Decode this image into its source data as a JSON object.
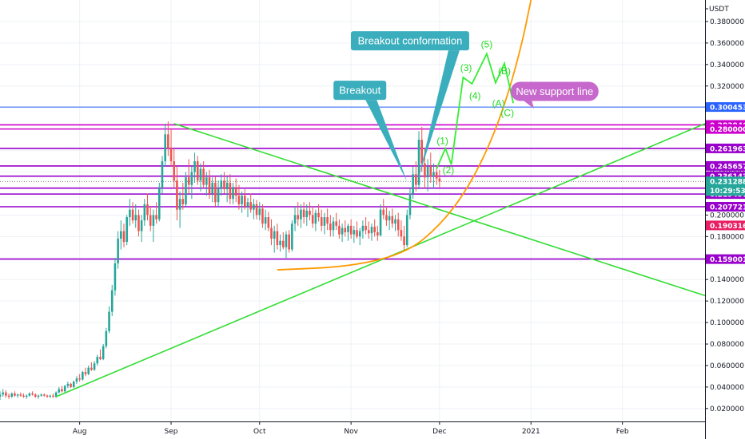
{
  "chart_data": {
    "type": "candlestick",
    "currency_label": "USDT",
    "y_range": [
      0.008,
      0.4
    ],
    "x_range": [
      "Jul 5",
      "Mar 1"
    ],
    "y_ticks": [
      "0.380000",
      "0.360000",
      "0.340000",
      "0.320000",
      "0.300000",
      "0.280000",
      "0.260000",
      "0.240000",
      "0.220000",
      "0.200000",
      "0.180000",
      "0.160000",
      "0.140000",
      "0.120000",
      "0.100000",
      "0.080000",
      "0.060000",
      "0.040000",
      "0.020000"
    ],
    "x_ticks": [
      {
        "label": "Aug",
        "date": "Aug 1"
      },
      {
        "label": "Sep",
        "date": "Sep 1"
      },
      {
        "label": "Oct",
        "date": "Oct 1"
      },
      {
        "label": "Nov",
        "date": "Nov 1"
      },
      {
        "label": "Dec",
        "date": "Dec 1"
      },
      {
        "label": "2021",
        "date": "Jan 1"
      },
      {
        "label": "Feb",
        "date": "Feb 1"
      }
    ],
    "grid": true,
    "horizontal_levels": [
      {
        "value": 0.283846,
        "label": "0.283846",
        "color": "#cc00cc"
      },
      {
        "value": 0.28,
        "label": "0.280000",
        "color": "#cc00cc"
      },
      {
        "value": 0.261963,
        "label": "0.261963",
        "color": "#9900cc"
      },
      {
        "value": 0.245657,
        "label": "0.245657",
        "color": "#9900cc"
      },
      {
        "value": 0.236143,
        "label": "0.236143",
        "color": "#9900cc"
      },
      {
        "value": 0.225,
        "label": "",
        "color": "#9900cc"
      },
      {
        "value": 0.219497,
        "label": "0.219497",
        "color": "#9900cc"
      },
      {
        "value": 0.207721,
        "label": "0.207721",
        "color": "#9900cc"
      },
      {
        "value": 0.159001,
        "label": "0.159001",
        "color": "#9900cc"
      }
    ],
    "blue_level": {
      "value": 0.300453,
      "label": "0.300453",
      "color": "#2962ff"
    },
    "price_level": {
      "value": 0.190316,
      "label": "0.190316",
      "color": "#e91e63"
    },
    "current_price": {
      "value": 0.231288,
      "label": "0.231288",
      "countdown": "10:29:53",
      "color": "#26a69a"
    },
    "trendlines": [
      {
        "name": "rising support",
        "color": "#33dd33",
        "points": [
          [
            "Jul 24",
            0.031
          ],
          [
            "Mar 1",
            0.285
          ]
        ]
      },
      {
        "name": "falling resistance",
        "color": "#33dd33",
        "points": [
          [
            "Sep 2",
            0.285
          ],
          [
            "Mar 1",
            0.125
          ]
        ]
      }
    ],
    "parabola": {
      "color": "#ff9900",
      "points": [
        [
          "Oct 7",
          0.149
        ],
        [
          "Nov 1",
          0.152
        ],
        [
          "Nov 20",
          0.165
        ],
        [
          "Dec 1",
          0.19
        ],
        [
          "Dec 10",
          0.222
        ],
        [
          "Dec 18",
          0.265
        ],
        [
          "Dec 24",
          0.31
        ],
        [
          "Dec 29",
          0.36
        ],
        [
          "Jan 1",
          0.4
        ]
      ]
    },
    "wave_path": {
      "color": "#33ee33",
      "points": [
        [
          "Nov 30",
          0.243
        ],
        [
          "Dec 3",
          0.262
        ],
        [
          "Dec 5",
          0.247
        ],
        [
          "Dec 9",
          0.328
        ],
        [
          "Dec 12",
          0.322
        ],
        [
          "Dec 17",
          0.35
        ],
        [
          "Dec 20",
          0.323
        ],
        [
          "Dec 23",
          0.341
        ],
        [
          "Dec 26",
          0.304
        ]
      ]
    },
    "wave_labels": [
      {
        "text": "(1)",
        "x": "Dec 2",
        "y": 0.266
      },
      {
        "text": "(2)",
        "x": "Dec 4",
        "y": 0.239
      },
      {
        "text": "(3)",
        "x": "Dec 10",
        "y": 0.334
      },
      {
        "text": "(4)",
        "x": "Dec 13",
        "y": 0.308
      },
      {
        "text": "(5)",
        "x": "Dec 17",
        "y": 0.356
      },
      {
        "text": "(B)",
        "x": "Dec 23",
        "y": 0.331
      },
      {
        "text": "(A)",
        "x": "Dec 21",
        "y": 0.301
      },
      {
        "text": "(C)",
        "x": "Dec 24",
        "y": 0.292
      }
    ],
    "callouts": [
      {
        "text": "Breakout conformation",
        "color": "#3aaebd",
        "box_x": "Nov 21",
        "box_y": 0.362,
        "tip": [
          "Nov 24",
          0.236
        ]
      },
      {
        "text": "Breakout",
        "color": "#3aaebd",
        "box_x": "Nov 4",
        "box_y": 0.316,
        "tip": [
          "Nov 20",
          0.231
        ]
      },
      {
        "text": "New support line",
        "color": "#c768cc",
        "box_x": "Jan 9",
        "box_y": 0.315,
        "tip": [
          "Jan 2",
          0.299
        ]
      }
    ],
    "candles": [
      [
        "Jul 5",
        0.031,
        0.036,
        0.028,
        0.033
      ],
      [
        "Jul 6",
        0.033,
        0.038,
        0.031,
        0.035
      ],
      [
        "Jul 7",
        0.035,
        0.037,
        0.03,
        0.032
      ],
      [
        "Jul 8",
        0.032,
        0.034,
        0.029,
        0.031
      ],
      [
        "Jul 9",
        0.031,
        0.035,
        0.03,
        0.034
      ],
      [
        "Jul 10",
        0.034,
        0.036,
        0.031,
        0.032
      ],
      [
        "Jul 11",
        0.032,
        0.034,
        0.03,
        0.033
      ],
      [
        "Jul 12",
        0.033,
        0.035,
        0.031,
        0.032
      ],
      [
        "Jul 13",
        0.032,
        0.034,
        0.03,
        0.031
      ],
      [
        "Jul 14",
        0.031,
        0.033,
        0.029,
        0.032
      ],
      [
        "Jul 15",
        0.032,
        0.035,
        0.031,
        0.034
      ],
      [
        "Jul 16",
        0.034,
        0.036,
        0.032,
        0.033
      ],
      [
        "Jul 17",
        0.033,
        0.034,
        0.03,
        0.031
      ],
      [
        "Jul 18",
        0.031,
        0.033,
        0.029,
        0.032
      ],
      [
        "Jul 19",
        0.032,
        0.034,
        0.031,
        0.033
      ],
      [
        "Jul 20",
        0.033,
        0.034,
        0.031,
        0.032
      ],
      [
        "Jul 21",
        0.032,
        0.033,
        0.03,
        0.031
      ],
      [
        "Jul 22",
        0.031,
        0.033,
        0.03,
        0.032
      ],
      [
        "Jul 23",
        0.032,
        0.034,
        0.03,
        0.031
      ],
      [
        "Jul 24",
        0.031,
        0.036,
        0.03,
        0.035
      ],
      [
        "Jul 25",
        0.035,
        0.04,
        0.034,
        0.038
      ],
      [
        "Jul 26",
        0.038,
        0.041,
        0.035,
        0.036
      ],
      [
        "Jul 27",
        0.036,
        0.042,
        0.035,
        0.041
      ],
      [
        "Jul 28",
        0.041,
        0.045,
        0.039,
        0.043
      ],
      [
        "Jul 29",
        0.043,
        0.044,
        0.039,
        0.04
      ],
      [
        "Jul 30",
        0.04,
        0.046,
        0.039,
        0.045
      ],
      [
        "Jul 31",
        0.045,
        0.05,
        0.043,
        0.048
      ],
      [
        "Aug 1",
        0.048,
        0.052,
        0.045,
        0.047
      ],
      [
        "Aug 2",
        0.047,
        0.055,
        0.046,
        0.054
      ],
      [
        "Aug 3",
        0.054,
        0.058,
        0.05,
        0.052
      ],
      [
        "Aug 4",
        0.052,
        0.06,
        0.051,
        0.058
      ],
      [
        "Aug 5",
        0.058,
        0.063,
        0.055,
        0.056
      ],
      [
        "Aug 6",
        0.056,
        0.064,
        0.055,
        0.062
      ],
      [
        "Aug 7",
        0.062,
        0.07,
        0.06,
        0.068
      ],
      [
        "Aug 8",
        0.068,
        0.075,
        0.065,
        0.066
      ],
      [
        "Aug 9",
        0.066,
        0.08,
        0.065,
        0.078
      ],
      [
        "Aug 10",
        0.078,
        0.095,
        0.076,
        0.092
      ],
      [
        "Aug 11",
        0.092,
        0.115,
        0.09,
        0.11
      ],
      [
        "Aug 12",
        0.11,
        0.135,
        0.106,
        0.13
      ],
      [
        "Aug 13",
        0.13,
        0.16,
        0.125,
        0.155
      ],
      [
        "Aug 14",
        0.155,
        0.185,
        0.15,
        0.178
      ],
      [
        "Aug 15",
        0.178,
        0.195,
        0.168,
        0.185
      ],
      [
        "Aug 16",
        0.185,
        0.192,
        0.17,
        0.175
      ],
      [
        "Aug 17",
        0.175,
        0.2,
        0.172,
        0.198
      ],
      [
        "Aug 18",
        0.198,
        0.215,
        0.19,
        0.205
      ],
      [
        "Aug 19",
        0.205,
        0.212,
        0.192,
        0.195
      ],
      [
        "Aug 20",
        0.195,
        0.21,
        0.188,
        0.2
      ],
      [
        "Aug 21",
        0.2,
        0.205,
        0.18,
        0.185
      ],
      [
        "Aug 22",
        0.185,
        0.2,
        0.175,
        0.195
      ],
      [
        "Aug 23",
        0.195,
        0.215,
        0.19,
        0.21
      ],
      [
        "Aug 24",
        0.21,
        0.22,
        0.195,
        0.2
      ],
      [
        "Aug 25",
        0.2,
        0.208,
        0.185,
        0.19
      ],
      [
        "Aug 26",
        0.19,
        0.205,
        0.175,
        0.2
      ],
      [
        "Aug 27",
        0.2,
        0.212,
        0.192,
        0.196
      ],
      [
        "Aug 28",
        0.196,
        0.23,
        0.194,
        0.225
      ],
      [
        "Aug 29",
        0.225,
        0.255,
        0.22,
        0.25
      ],
      [
        "Aug 30",
        0.25,
        0.285,
        0.245,
        0.275
      ],
      [
        "Aug 31",
        0.275,
        0.287,
        0.255,
        0.262
      ],
      [
        "Sep 1",
        0.262,
        0.28,
        0.245,
        0.25
      ],
      [
        "Sep 2",
        0.25,
        0.262,
        0.225,
        0.232
      ],
      [
        "Sep 3",
        0.232,
        0.245,
        0.195,
        0.205
      ],
      [
        "Sep 4",
        0.205,
        0.222,
        0.188,
        0.215
      ],
      [
        "Sep 5",
        0.215,
        0.23,
        0.205,
        0.21
      ],
      [
        "Sep 6",
        0.21,
        0.24,
        0.208,
        0.235
      ],
      [
        "Sep 7",
        0.235,
        0.252,
        0.22,
        0.228
      ],
      [
        "Sep 8",
        0.228,
        0.245,
        0.215,
        0.24
      ],
      [
        "Sep 9",
        0.24,
        0.258,
        0.23,
        0.25
      ],
      [
        "Sep 10",
        0.25,
        0.255,
        0.228,
        0.232
      ],
      [
        "Sep 11",
        0.232,
        0.248,
        0.222,
        0.243
      ],
      [
        "Sep 12",
        0.243,
        0.25,
        0.225,
        0.228
      ],
      [
        "Sep 13",
        0.228,
        0.24,
        0.218,
        0.235
      ],
      [
        "Sep 14",
        0.235,
        0.242,
        0.215,
        0.22
      ],
      [
        "Sep 15",
        0.22,
        0.235,
        0.212,
        0.23
      ],
      [
        "Sep 16",
        0.23,
        0.236,
        0.208,
        0.212
      ],
      [
        "Sep 17",
        0.212,
        0.232,
        0.208,
        0.225
      ],
      [
        "Sep 18",
        0.225,
        0.238,
        0.218,
        0.232
      ],
      [
        "Sep 19",
        0.232,
        0.24,
        0.22,
        0.224
      ],
      [
        "Sep 20",
        0.224,
        0.236,
        0.212,
        0.23
      ],
      [
        "Sep 21",
        0.23,
        0.238,
        0.21,
        0.215
      ],
      [
        "Sep 22",
        0.215,
        0.23,
        0.21,
        0.226
      ],
      [
        "Sep 23",
        0.226,
        0.234,
        0.212,
        0.218
      ],
      [
        "Sep 24",
        0.218,
        0.228,
        0.205,
        0.21
      ],
      [
        "Sep 25",
        0.21,
        0.222,
        0.202,
        0.218
      ],
      [
        "Sep 26",
        0.218,
        0.224,
        0.205,
        0.208
      ],
      [
        "Sep 27",
        0.208,
        0.216,
        0.198,
        0.212
      ],
      [
        "Sep 28",
        0.212,
        0.22,
        0.202,
        0.205
      ],
      [
        "Sep 29",
        0.205,
        0.215,
        0.196,
        0.21
      ],
      [
        "Sep 30",
        0.21,
        0.214,
        0.196,
        0.2
      ],
      [
        "Oct 1",
        0.2,
        0.212,
        0.195,
        0.206
      ],
      [
        "Oct 2",
        0.206,
        0.21,
        0.188,
        0.192
      ],
      [
        "Oct 3",
        0.192,
        0.205,
        0.186,
        0.198
      ],
      [
        "Oct 4",
        0.198,
        0.203,
        0.185,
        0.188
      ],
      [
        "Oct 5",
        0.188,
        0.196,
        0.172,
        0.178
      ],
      [
        "Oct 6",
        0.178,
        0.19,
        0.165,
        0.185
      ],
      [
        "Oct 7",
        0.185,
        0.192,
        0.168,
        0.172
      ],
      [
        "Oct 8",
        0.172,
        0.182,
        0.166,
        0.176
      ],
      [
        "Oct 9",
        0.176,
        0.184,
        0.168,
        0.17
      ],
      [
        "Oct 10",
        0.17,
        0.185,
        0.16,
        0.182
      ],
      [
        "Oct 11",
        0.182,
        0.186,
        0.165,
        0.168
      ],
      [
        "Oct 12",
        0.168,
        0.195,
        0.166,
        0.192
      ],
      [
        "Oct 13",
        0.192,
        0.208,
        0.185,
        0.2
      ],
      [
        "Oct 14",
        0.2,
        0.212,
        0.19,
        0.196
      ],
      [
        "Oct 15",
        0.196,
        0.21,
        0.188,
        0.205
      ],
      [
        "Oct 16",
        0.205,
        0.212,
        0.192,
        0.198
      ],
      [
        "Oct 17",
        0.198,
        0.21,
        0.19,
        0.204
      ],
      [
        "Oct 18",
        0.204,
        0.212,
        0.195,
        0.2
      ],
      [
        "Oct 19",
        0.2,
        0.208,
        0.188,
        0.192
      ],
      [
        "Oct 20",
        0.192,
        0.205,
        0.185,
        0.202
      ],
      [
        "Oct 21",
        0.202,
        0.21,
        0.194,
        0.198
      ],
      [
        "Oct 22",
        0.198,
        0.205,
        0.185,
        0.19
      ],
      [
        "Oct 23",
        0.19,
        0.202,
        0.182,
        0.198
      ],
      [
        "Oct 24",
        0.198,
        0.206,
        0.186,
        0.192
      ],
      [
        "Oct 25",
        0.192,
        0.2,
        0.18,
        0.186
      ],
      [
        "Oct 26",
        0.186,
        0.198,
        0.18,
        0.194
      ],
      [
        "Oct 27",
        0.194,
        0.202,
        0.186,
        0.19
      ],
      [
        "Oct 28",
        0.19,
        0.196,
        0.178,
        0.182
      ],
      [
        "Oct 29",
        0.182,
        0.192,
        0.175,
        0.188
      ],
      [
        "Oct 30",
        0.188,
        0.195,
        0.18,
        0.184
      ],
      [
        "Oct 31",
        0.184,
        0.192,
        0.176,
        0.19
      ],
      [
        "Nov 1",
        0.19,
        0.196,
        0.178,
        0.182
      ],
      [
        "Nov 2",
        0.182,
        0.19,
        0.174,
        0.186
      ],
      [
        "Nov 3",
        0.186,
        0.194,
        0.178,
        0.18
      ],
      [
        "Nov 4",
        0.18,
        0.188,
        0.172,
        0.185
      ],
      [
        "Nov 5",
        0.185,
        0.195,
        0.178,
        0.19
      ],
      [
        "Nov 6",
        0.19,
        0.198,
        0.182,
        0.186
      ],
      [
        "Nov 7",
        0.186,
        0.194,
        0.178,
        0.183
      ],
      [
        "Nov 8",
        0.183,
        0.192,
        0.176,
        0.189
      ],
      [
        "Nov 9",
        0.189,
        0.196,
        0.18,
        0.184
      ],
      [
        "Nov 10",
        0.184,
        0.19,
        0.176,
        0.181
      ],
      [
        "Nov 11",
        0.181,
        0.21,
        0.18,
        0.205
      ],
      [
        "Nov 12",
        0.205,
        0.215,
        0.196,
        0.2
      ],
      [
        "Nov 13",
        0.2,
        0.208,
        0.19,
        0.195
      ],
      [
        "Nov 14",
        0.195,
        0.204,
        0.186,
        0.199
      ],
      [
        "Nov 15",
        0.199,
        0.206,
        0.188,
        0.192
      ],
      [
        "Nov 16",
        0.192,
        0.2,
        0.185,
        0.196
      ],
      [
        "Nov 17",
        0.196,
        0.202,
        0.18,
        0.186
      ],
      [
        "Nov 18",
        0.186,
        0.195,
        0.176,
        0.18
      ],
      [
        "Nov 19",
        0.18,
        0.19,
        0.166,
        0.172
      ],
      [
        "Nov 20",
        0.172,
        0.205,
        0.17,
        0.2
      ],
      [
        "Nov 21",
        0.2,
        0.225,
        0.196,
        0.22
      ],
      [
        "Nov 22",
        0.22,
        0.245,
        0.215,
        0.238
      ],
      [
        "Nov 23",
        0.238,
        0.25,
        0.222,
        0.228
      ],
      [
        "Nov 24",
        0.228,
        0.278,
        0.224,
        0.27
      ],
      [
        "Nov 25",
        0.27,
        0.282,
        0.24,
        0.248
      ],
      [
        "Nov 26",
        0.248,
        0.262,
        0.225,
        0.235
      ],
      [
        "Nov 27",
        0.235,
        0.252,
        0.222,
        0.245
      ],
      [
        "Nov 28",
        0.245,
        0.258,
        0.23,
        0.236
      ],
      [
        "Nov 29",
        0.236,
        0.248,
        0.225,
        0.24
      ],
      [
        "Nov 30",
        0.24,
        0.246,
        0.228,
        0.234
      ],
      [
        "Dec 1",
        0.234,
        0.242,
        0.226,
        0.231
      ]
    ]
  }
}
